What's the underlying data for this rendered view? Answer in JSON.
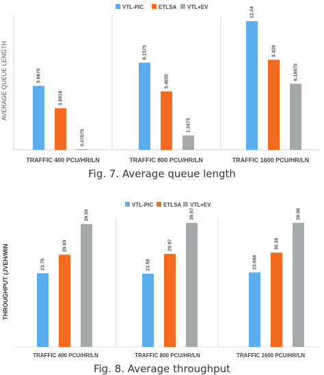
{
  "colors": {
    "VTL-PIC": "#5badec",
    "ETLSA": "#f36a21",
    "VTL+EV": "#a6a9a9",
    "separator": "#d8d8d8",
    "axis": "#cfcfcf"
  },
  "captions": {
    "fig7": "Fig. 7. Average queue length",
    "fig8": "Fig. 8. Average throughput"
  },
  "chart_data": [
    {
      "type": "bar",
      "title": "",
      "ylabel": "AVERAGE QUEUE LENGTH",
      "xlabel": "",
      "categories": [
        "TRAFFIC 400 PCU/HR/LN",
        "TRAFFIC 800 PCU/HR/LN",
        "TRAFFIC 1600 PCU/HR/LN"
      ],
      "series": [
        {
          "name": "VTL-PIC",
          "values": [
            5.9875,
            8.1575,
            12.04
          ],
          "labels": [
            "5.9875",
            "8.1575",
            "12.04"
          ]
        },
        {
          "name": "ETLSA",
          "values": [
            3.8918,
            5.4655,
            8.428
          ],
          "labels": [
            "3.8918",
            "5.4655",
            "8.428"
          ]
        },
        {
          "name": "VTL+EV",
          "values": [
            0.07075,
            1.3475,
            6.18875
          ],
          "labels": [
            "0.07075",
            "1.3475",
            "6.18875"
          ]
        }
      ],
      "ylim": [
        0,
        12.8
      ],
      "legend": "top-center",
      "grid": false
    },
    {
      "type": "bar",
      "title": "",
      "ylabel": "THROUGHPUT (JVEH/MIN",
      "xlabel": "",
      "categories": [
        "TRAFFIC 400 PCU/HR/LN",
        "TRAFFIC 800 PCU/HR/LN",
        "TRAFFIC 1600 PCU/HR/LN"
      ],
      "series": [
        {
          "name": "VTL-PIC",
          "values": [
            23.75,
            23.58,
            23.988
          ],
          "labels": [
            "23.75",
            "23.58",
            "23.988"
          ]
        },
        {
          "name": "ETLSA",
          "values": [
            29.69,
            29.97,
            30.38
          ],
          "labels": [
            "29.69",
            "29.97",
            "30.38"
          ]
        },
        {
          "name": "VTL+EV",
          "values": [
            39.59,
            39.97,
            39.98
          ],
          "labels": [
            "39.59",
            "39.97",
            "39.98"
          ]
        }
      ],
      "ylim": [
        0,
        41
      ],
      "legend": "top-center",
      "grid": false
    }
  ]
}
